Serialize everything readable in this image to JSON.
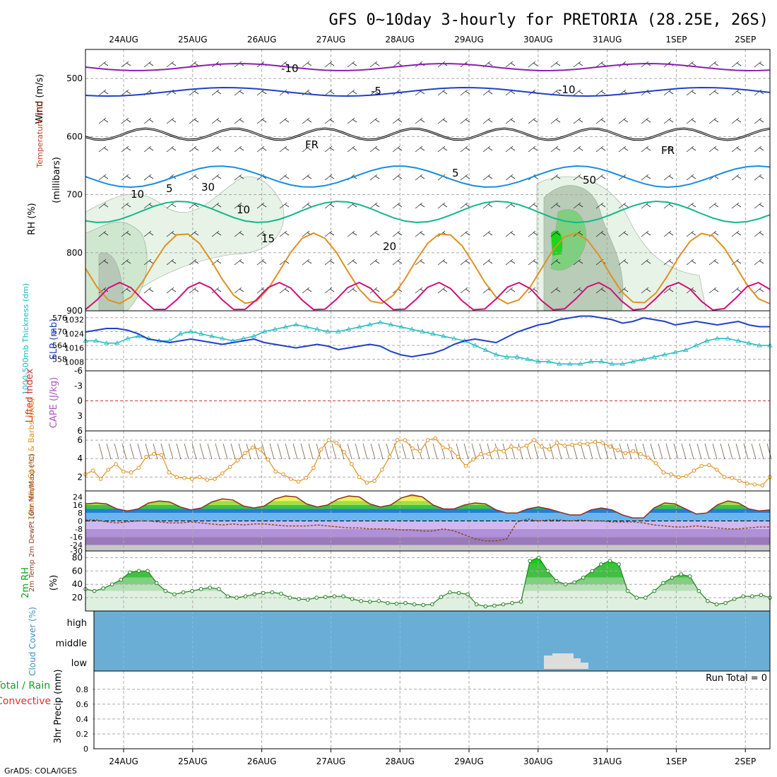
{
  "title": "GFS 0~10day 3-hourly for PRETORIA (28.25E, 26S)",
  "credit": "GrADS: COLA/IGES",
  "colors": {
    "purple": "#8b1fb0",
    "blue": "#1f40c8",
    "lightblue": "#1a8ce0",
    "teal": "#10b88a",
    "orange": "#e09020",
    "magenta": "#d0107a",
    "cyan": "#20b8c0",
    "cloud": "#6aaed6",
    "grid": "#aaaaaa"
  },
  "chart_data": [
    {
      "type": "line",
      "panel": "upper-air",
      "ylabel_wind": "Wind (m/s)",
      "ylabel_temp": "Temperature (°C)",
      "ylabel_rh": "RH (%)",
      "ylabel_units": "(millibars)",
      "categories": [
        "24AUG",
        "25AUG",
        "26AUG",
        "27AUG",
        "28AUG",
        "29AUG",
        "30AUG",
        "31AUG",
        "1SEP",
        "2SEP"
      ],
      "yticks": [
        "500",
        "600",
        "700",
        "800",
        "900"
      ],
      "ylim": [
        450,
        900
      ],
      "contour_labels": [
        "-10",
        "-5",
        "FR",
        "5",
        "10",
        "15",
        "20",
        "-10",
        "FR",
        "10",
        "30",
        "50",
        "5"
      ]
    },
    {
      "type": "line",
      "panel": "thickness-slp",
      "ylabel_left": "1000-500mb Thickness (dm)",
      "ylabel_right": "SLP (mb)",
      "yticks_left": [
        "576",
        "570",
        "564",
        "558"
      ],
      "yticks_right": [
        "1032",
        "1024",
        "1016",
        "1008"
      ],
      "series": [
        {
          "name": "Thickness",
          "values": [
            566,
            566,
            565,
            565,
            567,
            568,
            567,
            566,
            566,
            569,
            570,
            569,
            568,
            567,
            566,
            567,
            568,
            570,
            571,
            572,
            573,
            572,
            571,
            570,
            570,
            571,
            572,
            573,
            574,
            573,
            572,
            571,
            570,
            569,
            568,
            567,
            566,
            564,
            562,
            560,
            559,
            559,
            558,
            557,
            557,
            556,
            556,
            556,
            557,
            557,
            556,
            556,
            557,
            558,
            559,
            560,
            561,
            562,
            564,
            566,
            567,
            567,
            566,
            565,
            564,
            564
          ]
        },
        {
          "name": "SLP",
          "values": [
            1025,
            1026,
            1027,
            1027,
            1026,
            1024,
            1021,
            1020,
            1019,
            1020,
            1021,
            1020,
            1019,
            1018,
            1019,
            1020,
            1021,
            1019,
            1018,
            1017,
            1016,
            1017,
            1018,
            1017,
            1015,
            1016,
            1017,
            1018,
            1017,
            1014,
            1012,
            1011,
            1012,
            1013,
            1015,
            1018,
            1020,
            1021,
            1020,
            1019,
            1022,
            1025,
            1027,
            1029,
            1030,
            1032,
            1033,
            1034,
            1034,
            1033,
            1032,
            1030,
            1031,
            1033,
            1032,
            1031,
            1029,
            1030,
            1031,
            1030,
            1029,
            1030,
            1031,
            1029,
            1028,
            1028
          ]
        }
      ]
    },
    {
      "type": "line",
      "panel": "stability",
      "ylabel_left": "Lifted Index",
      "ylabel_right": "CAPE (J/kg)",
      "yticks": [
        "-6",
        "-3",
        "0",
        "3",
        "6"
      ],
      "ylim": [
        -6,
        6
      ],
      "series": [
        {
          "name": "Lifted Index",
          "values": []
        }
      ]
    },
    {
      "type": "line",
      "panel": "10m-wind",
      "ylabel": "10m Wind Speed & Barbs (m/s)",
      "yticks": [
        "2",
        "4",
        "6"
      ],
      "ylim": [
        0.5,
        7
      ],
      "series": [
        {
          "name": "10m Wind Speed",
          "values": [
            2.3,
            2.7,
            1.8,
            2.8,
            3.4,
            2.6,
            2.5,
            3.0,
            4.2,
            4.5,
            4.4,
            2.5,
            2.0,
            1.9,
            1.8,
            2.0,
            1.7,
            1.8,
            2.4,
            3.1,
            3.8,
            4.6,
            5.2,
            5.0,
            3.9,
            2.6,
            2.3,
            1.8,
            1.5,
            1.9,
            3.0,
            5.0,
            6.0,
            5.7,
            4.7,
            3.4,
            2.0,
            1.4,
            1.6,
            2.8,
            4.2,
            6.0,
            6.0,
            5.1,
            4.8,
            6.0,
            6.2,
            5.2,
            5.0,
            4.2,
            3.2,
            3.9,
            4.5,
            4.5,
            5.0,
            4.8,
            5.3,
            5.1,
            5.4,
            6.0,
            5.3,
            5.0,
            5.7,
            5.4,
            5.5,
            5.6,
            5.6,
            5.8,
            5.7,
            5.3,
            4.9,
            4.6,
            4.8,
            4.5,
            4.1,
            3.5,
            2.5,
            2.3,
            2.0,
            2.1,
            2.7,
            3.2,
            3.3,
            2.8,
            2.0,
            1.9,
            1.6,
            1.3,
            1.2,
            1.1,
            2.0
          ]
        }
      ]
    },
    {
      "type": "area",
      "panel": "2m-temp",
      "ylabel": "2m Temp 2m DewPt (6hr Min/Max) (°C)",
      "yticks": [
        "24",
        "16",
        "8",
        "0",
        "-8",
        "-16",
        "-24",
        "-30"
      ],
      "ylim": [
        -30,
        30
      ],
      "series": [
        {
          "name": "2m Temp",
          "values": [
            17,
            18,
            17,
            12,
            10,
            12,
            18,
            20,
            19,
            14,
            11,
            13,
            19,
            22,
            21,
            15,
            13,
            15,
            22,
            25,
            24,
            17,
            14,
            16,
            22,
            25,
            24,
            17,
            14,
            16,
            23,
            26,
            24,
            16,
            12,
            12,
            16,
            18,
            17,
            11,
            8,
            8,
            12,
            14,
            12,
            9,
            6,
            6,
            11,
            13,
            11,
            6,
            3,
            3,
            13,
            18,
            17,
            12,
            7,
            8,
            16,
            20,
            18,
            12,
            10,
            11
          ]
        },
        {
          "name": "2m DewPt",
          "values": [
            1,
            1,
            -1,
            -2,
            -1,
            0,
            0,
            -1,
            -2,
            -2,
            -1,
            -2,
            -3,
            -4,
            -3,
            -4,
            -3,
            -3,
            -4,
            -5,
            -5,
            -5,
            -4,
            -5,
            -6,
            -7,
            -7,
            -8,
            -8,
            -8,
            -9,
            -9,
            -10,
            -10,
            -8,
            -10,
            -14,
            -18,
            -20,
            -20,
            -18,
            -1,
            2,
            0,
            1,
            1,
            0,
            1,
            0,
            0,
            -1,
            -1,
            -1,
            -2,
            -4,
            -5,
            -6,
            -6,
            -5,
            -6,
            -7,
            -8,
            -8,
            -7,
            -6,
            -6
          ]
        }
      ]
    },
    {
      "type": "area",
      "panel": "2m-rh",
      "ylabel": "2m RH",
      "yunit": "(%)",
      "yticks": [
        "20",
        "40",
        "60",
        "80"
      ],
      "ylim": [
        0,
        90
      ],
      "series": [
        {
          "name": "2m RH",
          "values": [
            33,
            30,
            34,
            40,
            47,
            58,
            60,
            60,
            42,
            30,
            25,
            28,
            30,
            33,
            35,
            33,
            22,
            20,
            22,
            25,
            27,
            28,
            26,
            20,
            18,
            17,
            20,
            21,
            22,
            22,
            18,
            15,
            14,
            15,
            12,
            11,
            12,
            10,
            9,
            10,
            21,
            28,
            27,
            25,
            10,
            7,
            8,
            10,
            12,
            14,
            75,
            80,
            60,
            45,
            40,
            43,
            50,
            60,
            70,
            75,
            70,
            30,
            20,
            20,
            30,
            42,
            50,
            55,
            52,
            30,
            15,
            10,
            12,
            18,
            22,
            22,
            24,
            20
          ]
        }
      ]
    },
    {
      "type": "heatmap",
      "panel": "cloud-cover",
      "ylabel": "Cloud Cover (%)",
      "ycategories": [
        "high",
        "middle",
        "low"
      ]
    },
    {
      "type": "bar",
      "panel": "precip",
      "ylabel_left1": "Total / Rain",
      "ylabel_left2": "Convective",
      "ylabel": "3hr Precip (mm)",
      "annotation": "Run Total = 0",
      "yticks": [
        "0",
        "0.2",
        "0.4",
        "0.6",
        "0.8"
      ],
      "ylim": [
        0,
        1
      ],
      "values": []
    }
  ]
}
